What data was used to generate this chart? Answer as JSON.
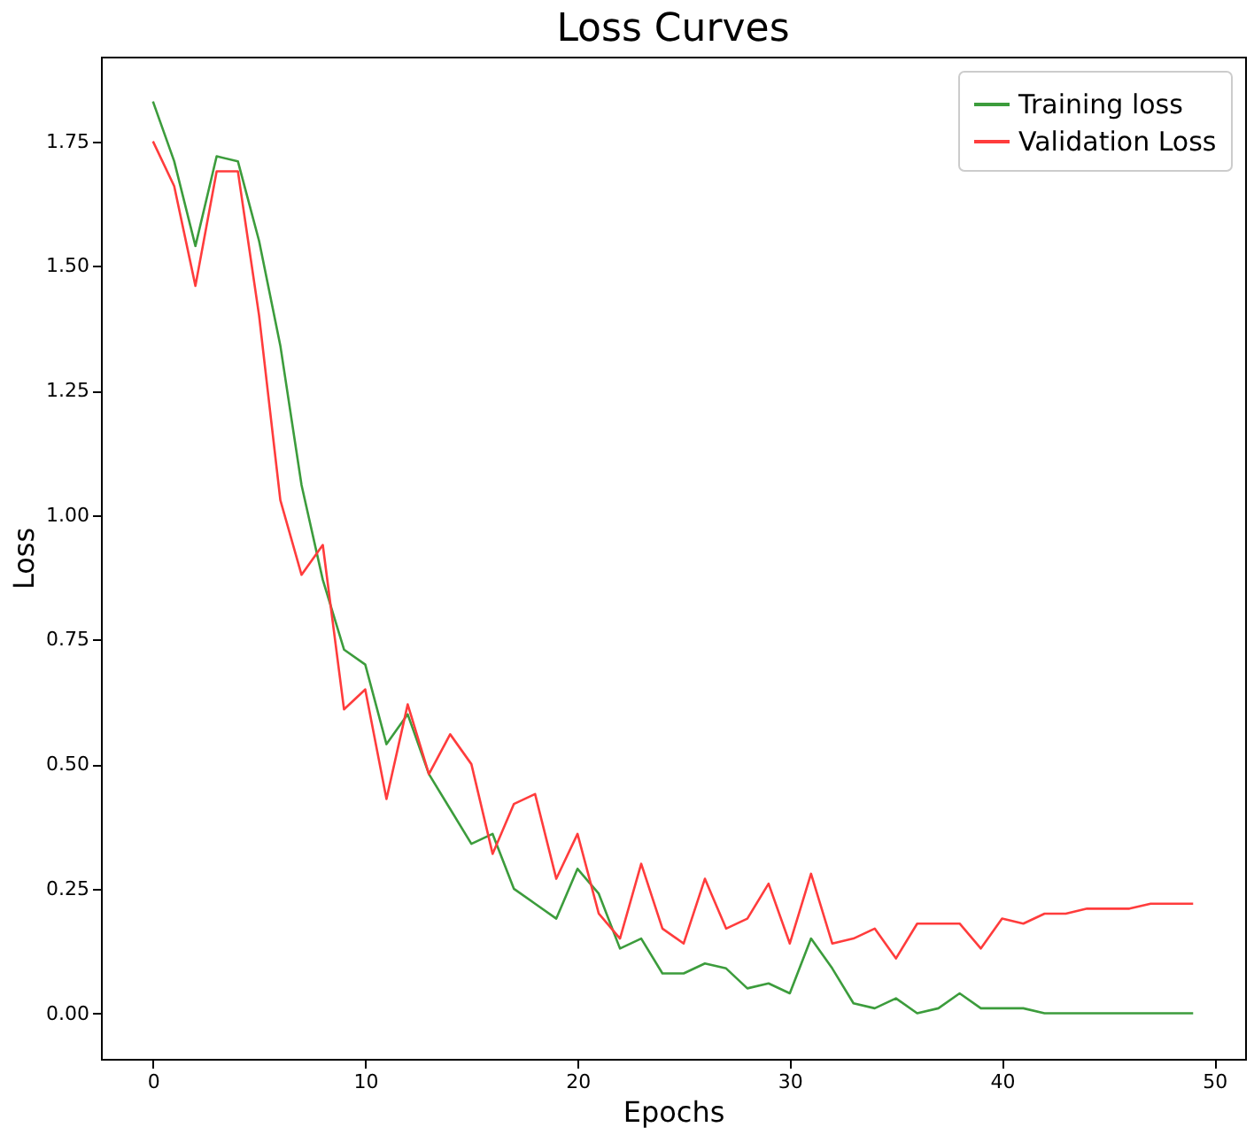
{
  "chart_data": {
    "type": "line",
    "title": "Loss Curves",
    "xlabel": "Epochs",
    "ylabel": "Loss",
    "x": [
      0,
      1,
      2,
      3,
      4,
      5,
      6,
      7,
      8,
      9,
      10,
      11,
      12,
      13,
      14,
      15,
      16,
      17,
      18,
      19,
      20,
      21,
      22,
      23,
      24,
      25,
      26,
      27,
      28,
      29,
      30,
      31,
      32,
      33,
      34,
      35,
      36,
      37,
      38,
      39,
      40,
      41,
      42,
      43,
      44,
      45,
      46,
      47,
      48,
      49
    ],
    "series": [
      {
        "name": "Training loss",
        "color": "#3c9c3c",
        "values": [
          1.83,
          1.71,
          1.54,
          1.72,
          1.71,
          1.55,
          1.34,
          1.06,
          0.87,
          0.73,
          0.7,
          0.54,
          0.6,
          0.48,
          0.41,
          0.34,
          0.36,
          0.25,
          0.22,
          0.19,
          0.29,
          0.24,
          0.13,
          0.15,
          0.08,
          0.08,
          0.1,
          0.09,
          0.05,
          0.06,
          0.04,
          0.15,
          0.09,
          0.02,
          0.01,
          0.03,
          0.0,
          0.01,
          0.04,
          0.01,
          0.01,
          0.01,
          0.0,
          0.0,
          0.0,
          0.0,
          0.0,
          0.0,
          0.0,
          0.0
        ]
      },
      {
        "name": "Validation Loss",
        "color": "#ff3c3c",
        "values": [
          1.75,
          1.66,
          1.46,
          1.69,
          1.69,
          1.4,
          1.03,
          0.88,
          0.94,
          0.61,
          0.65,
          0.43,
          0.62,
          0.48,
          0.56,
          0.5,
          0.32,
          0.42,
          0.44,
          0.27,
          0.36,
          0.2,
          0.15,
          0.3,
          0.17,
          0.14,
          0.27,
          0.17,
          0.19,
          0.26,
          0.14,
          0.28,
          0.14,
          0.15,
          0.17,
          0.11,
          0.18,
          0.18,
          0.18,
          0.13,
          0.19,
          0.18,
          0.2,
          0.2,
          0.21,
          0.21,
          0.21,
          0.22,
          0.22,
          0.22
        ]
      }
    ],
    "xlim": [
      -2.45,
      51.45
    ],
    "xticks": [
      0,
      10,
      20,
      30,
      40,
      50
    ],
    "ylim": [
      -0.0915,
      1.92
    ],
    "yticks": [
      {
        "value": 0,
        "label": "0.00"
      },
      {
        "value": 0.25,
        "label": "0.25"
      },
      {
        "value": 0.5,
        "label": "0.50"
      },
      {
        "value": 0.75,
        "label": "0.75"
      },
      {
        "value": 1,
        "label": "1.00"
      },
      {
        "value": 1.25,
        "label": "1.25"
      },
      {
        "value": 1.5,
        "label": "1.50"
      },
      {
        "value": 1.75,
        "label": "1.75"
      }
    ],
    "legend": "top right",
    "grid": false,
    "marker": "none",
    "line_style": "solid"
  }
}
